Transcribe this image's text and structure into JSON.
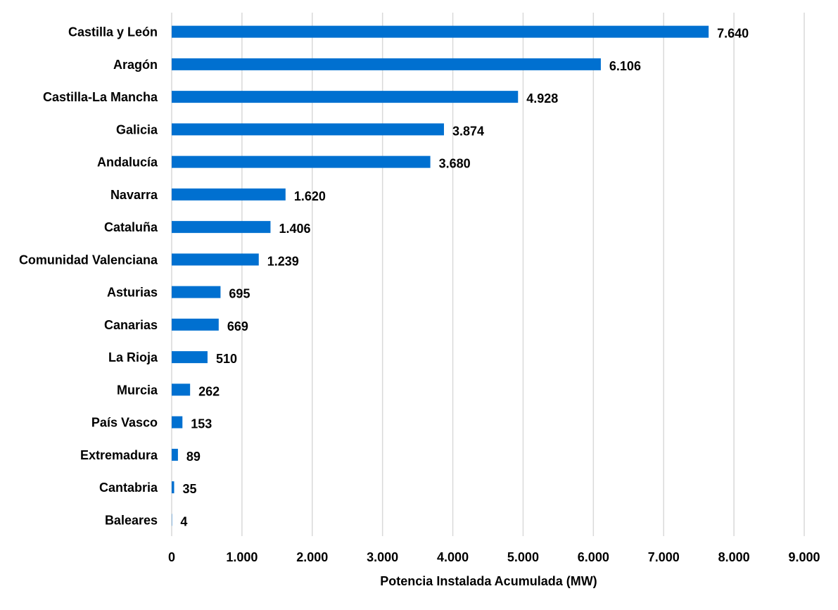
{
  "chart_data": {
    "type": "bar",
    "orientation": "horizontal",
    "title": "",
    "xlabel": "Potencia Instalada Acumulada (MW)",
    "ylabel": "",
    "categories": [
      "Castilla y León",
      "Aragón",
      "Castilla-La Mancha",
      "Galicia",
      "Andalucía",
      "Navarra",
      "Cataluña",
      "Comunidad Valenciana",
      "Asturias",
      "Canarias",
      "La Rioja",
      "Murcia",
      "País Vasco",
      "Extremadura",
      "Cantabria",
      "Baleares"
    ],
    "values": [
      7640,
      6106,
      4928,
      3874,
      3680,
      1620,
      1406,
      1239,
      695,
      669,
      510,
      262,
      153,
      89,
      35,
      4
    ],
    "value_labels": [
      "7.640",
      "6.106",
      "4.928",
      "3.874",
      "3.680",
      "1.620",
      "1.406",
      "1.239",
      "695",
      "669",
      "510",
      "262",
      "153",
      "89",
      "35",
      "4"
    ],
    "xlim": [
      0,
      9000
    ],
    "xticks": [
      0,
      1000,
      2000,
      3000,
      4000,
      5000,
      6000,
      7000,
      8000,
      9000
    ],
    "xtick_labels": [
      "0",
      "1.000",
      "2.000",
      "3.000",
      "4.000",
      "5.000",
      "6.000",
      "7.000",
      "8.000",
      "9.000"
    ],
    "grid": "vertical",
    "legend": "none",
    "bar_color": "#0070D0",
    "grid_color": "#D9D9D9"
  }
}
